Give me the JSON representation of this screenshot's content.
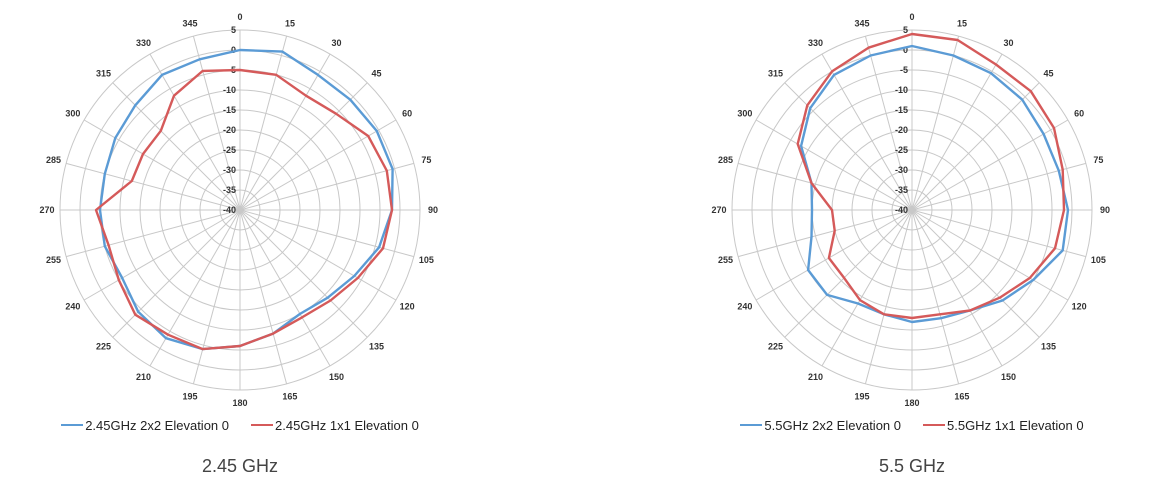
{
  "colors": {
    "series_2x2": "#5b9bd5",
    "series_1x1": "#d55a5a",
    "grid": "#c8c8c8"
  },
  "chart_data": [
    {
      "type": "line",
      "subtype": "polar",
      "caption": "2.45 GHz",
      "angle_labels": [
        "0",
        "15",
        "30",
        "45",
        "60",
        "75",
        "90",
        "105",
        "120",
        "135",
        "150",
        "165",
        "180",
        "195",
        "210",
        "225",
        "240",
        "255",
        "270",
        "285",
        "300",
        "315",
        "330",
        "345"
      ],
      "radial_labels": [
        "5",
        "0",
        "-5",
        "-10",
        "-15",
        "-20",
        "-25",
        "-30",
        "-35",
        "-40"
      ],
      "rlim": [
        -40,
        5
      ],
      "grid": true,
      "legend": "bottom",
      "angles": [
        0,
        15,
        30,
        45,
        60,
        75,
        90,
        105,
        120,
        135,
        150,
        165,
        180,
        195,
        210,
        225,
        240,
        255,
        270,
        285,
        300,
        315,
        330,
        345
      ],
      "series": [
        {
          "name": "2.45GHz 2x2 Elevation 0",
          "color": "#5b9bd5",
          "values": [
            0,
            1,
            -1,
            -1,
            -0.5,
            -0.5,
            -2,
            -4,
            -7,
            -9,
            -10,
            -8,
            -6,
            -4,
            -3,
            -4,
            -6,
            -5,
            -5,
            -5,
            -4,
            -3,
            -1,
            -1
          ]
        },
        {
          "name": "2.45GHz 1x1 Elevation 0",
          "color": "#d55a5a",
          "values": [
            -5,
            -5,
            -7,
            -6,
            -3,
            -2,
            -2,
            -3,
            -6,
            -8,
            -9,
            -8,
            -6,
            -4,
            -4,
            -3,
            -5,
            -6,
            -4,
            -12,
            -12,
            -12,
            -7,
            -4
          ]
        }
      ]
    },
    {
      "type": "line",
      "subtype": "polar",
      "caption": "5.5 GHz",
      "angle_labels": [
        "0",
        "15",
        "30",
        "45",
        "60",
        "75",
        "90",
        "105",
        "120",
        "135",
        "150",
        "165",
        "180",
        "195",
        "210",
        "225",
        "240",
        "255",
        "270",
        "285",
        "300",
        "315",
        "330",
        "345"
      ],
      "radial_labels": [
        "5",
        "0",
        "-5",
        "-10",
        "-15",
        "-20",
        "-25",
        "-30",
        "-35",
        "-40"
      ],
      "rlim": [
        -40,
        5
      ],
      "grid": true,
      "legend": "bottom",
      "angles": [
        0,
        15,
        30,
        45,
        60,
        75,
        90,
        105,
        120,
        135,
        150,
        165,
        180,
        195,
        210,
        225,
        240,
        255,
        270,
        285,
        300,
        315,
        330,
        345
      ],
      "series": [
        {
          "name": "5.5GHz 2x2 Elevation 0",
          "color": "#5b9bd5",
          "values": [
            1,
            0,
            -0.5,
            -1,
            -2,
            -2,
            -1,
            -1,
            -5,
            -8,
            -11,
            -12,
            -12,
            -13,
            -13,
            -10,
            -10,
            -14,
            -15,
            -14,
            -8,
            -4,
            -1,
            0
          ]
        },
        {
          "name": "5.5GHz 1x1 Elevation 0",
          "color": "#d55a5a",
          "values": [
            4,
            4,
            2,
            2,
            1,
            -1,
            -2,
            -3,
            -6,
            -9,
            -11,
            -13,
            -13,
            -13,
            -14,
            -16,
            -16,
            -20,
            -20,
            -14,
            -7,
            -3,
            0,
            2
          ]
        }
      ]
    }
  ]
}
